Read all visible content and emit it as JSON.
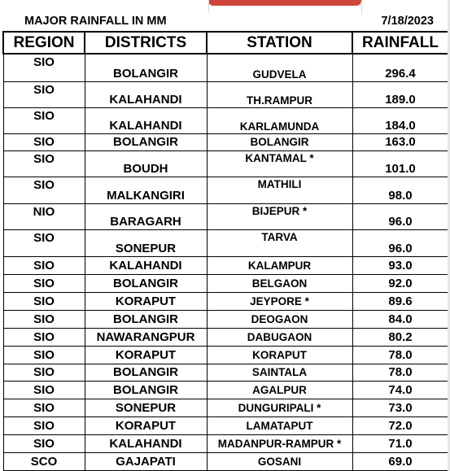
{
  "title": "MAJOR RAINFALL IN MM",
  "date": "7/18/2023",
  "headers": {
    "region": "REGION",
    "districts": "DISTRICTS",
    "station": "STATION",
    "rainfall": "RAINFALL"
  },
  "rows": [
    {
      "region": "SIO",
      "district": "BOLANGIR",
      "station": "GUDVELA",
      "rainfall": "296.4"
    },
    {
      "region": "SIO",
      "district": "KALAHANDI",
      "station": "TH.RAMPUR",
      "rainfall": "189.0"
    },
    {
      "region": "SIO",
      "district": "KALAHANDI",
      "station": "KARLAMUNDA",
      "rainfall": "184.0"
    },
    {
      "region": "SIO",
      "district": "BOLANGIR",
      "station": "BOLANGIR",
      "rainfall": "163.0"
    },
    {
      "region": "SIO",
      "district": "BOUDH",
      "station": "KANTAMAL *",
      "rainfall": "101.0"
    },
    {
      "region": "SIO",
      "district": "MALKANGIRI",
      "station": "MATHILI",
      "rainfall": "98.0"
    },
    {
      "region": "NIO",
      "district": "BARAGARH",
      "station": "BIJEPUR *",
      "rainfall": "96.0"
    },
    {
      "region": "SIO",
      "district": "SONEPUR",
      "station": "TARVA",
      "rainfall": "96.0"
    },
    {
      "region": "SIO",
      "district": "KALAHANDI",
      "station": "KALAMPUR",
      "rainfall": "93.0"
    },
    {
      "region": "SIO",
      "district": "BOLANGIR",
      "station": "BELGAON",
      "rainfall": "92.0"
    },
    {
      "region": "SIO",
      "district": "KORAPUT",
      "station": "JEYPORE *",
      "rainfall": "89.6"
    },
    {
      "region": "SIO",
      "district": "BOLANGIR",
      "station": "DEOGAON",
      "rainfall": "84.0"
    },
    {
      "region": "SIO",
      "district": "NAWARANGPUR",
      "station": "DABUGAON",
      "rainfall": "80.2"
    },
    {
      "region": "SIO",
      "district": "KORAPUT",
      "station": "KORAPUT",
      "rainfall": "78.0"
    },
    {
      "region": "SIO",
      "district": "BOLANGIR",
      "station": "SAINTALA",
      "rainfall": "78.0"
    },
    {
      "region": "SIO",
      "district": "BOLANGIR",
      "station": "AGALPUR",
      "rainfall": "74.0"
    },
    {
      "region": "SIO",
      "district": "SONEPUR",
      "station": "DUNGURIPALI *",
      "rainfall": "73.0"
    },
    {
      "region": "SIO",
      "district": "KORAPUT",
      "station": "LAMATAPUT",
      "rainfall": "72.0"
    },
    {
      "region": "SIO",
      "district": "KALAHANDI",
      "station": "MADANPUR-RAMPUR *",
      "rainfall": "71.0"
    },
    {
      "region": "SCO",
      "district": "GAJAPATI",
      "station": "GOSANI",
      "rainfall": "69.0"
    }
  ]
}
